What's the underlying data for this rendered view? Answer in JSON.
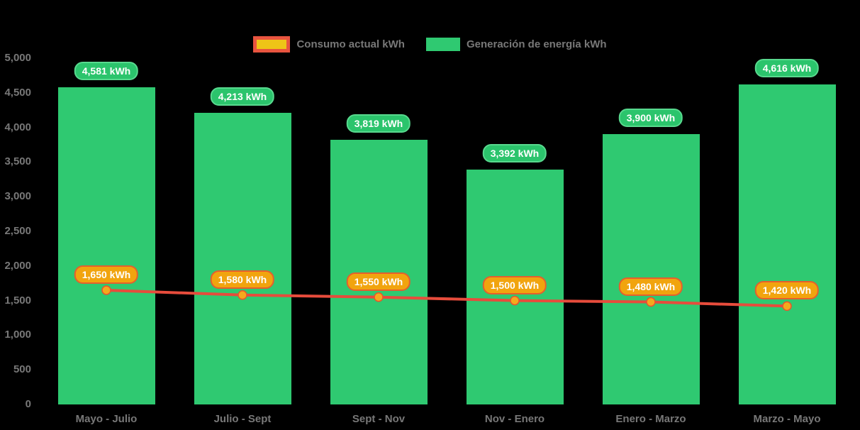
{
  "background_color": "#000000",
  "legend": {
    "position": "top",
    "items": [
      {
        "id": "consumo",
        "label": "Consumo actual kWh",
        "swatch": "line-swatch",
        "swatch_fill": "#eec417",
        "swatch_border": "#e8543f"
      },
      {
        "id": "generacion",
        "label": "Generación de energía kWh",
        "swatch": "bar-swatch",
        "swatch_fill": "#2fc971"
      }
    ]
  },
  "chart_data": {
    "type": "bar",
    "subtype": "bar-with-line-overlay",
    "title": "",
    "xlabel": "",
    "ylabel": "",
    "categories": [
      "Mayo - Julio",
      "Julio - Sept",
      "Sept - Nov",
      "Nov - Enero",
      "Enero - Marzo",
      "Marzo - Mayo"
    ],
    "series": [
      {
        "name": "Generación de energía kWh",
        "type": "bar",
        "color": "#2fc971",
        "values": [
          4581,
          4213,
          3819,
          3392,
          3900,
          4616
        ],
        "data_labels": [
          "4,581 kWh",
          "4,213 kWh",
          "3,819 kWh",
          "3,392 kWh",
          "3,900 kWh",
          "4,616 kWh"
        ],
        "label_style": {
          "fill": "#2bc46c",
          "border": "#58d98e",
          "text": "#ffffff"
        }
      },
      {
        "name": "Consumo actual kWh",
        "type": "line",
        "color": "#e74c3c",
        "point_color": "#f5a91d",
        "point_border": "#e8542e",
        "values": [
          1650,
          1580,
          1550,
          1500,
          1480,
          1420
        ],
        "data_labels": [
          "1,650 kWh",
          "1,580 kWh",
          "1,550 kWh",
          "1,500 kWh",
          "1,480 kWh",
          "1,420 kWh"
        ],
        "label_style": {
          "fill": "#f1a40e",
          "border": "#e45f2e",
          "text": "#ffffff"
        }
      }
    ],
    "y_axis": {
      "min": 0,
      "max": 5000,
      "step": 500,
      "tick_labels": [
        "0",
        "500",
        "1,000",
        "1,500",
        "2,000",
        "2,500",
        "3,000",
        "3,500",
        "4,000",
        "4,500",
        "5,000"
      ],
      "tick_color": "#787878"
    },
    "x_axis": {
      "tick_color": "#787878"
    },
    "grid": false,
    "legend_position": "top"
  }
}
